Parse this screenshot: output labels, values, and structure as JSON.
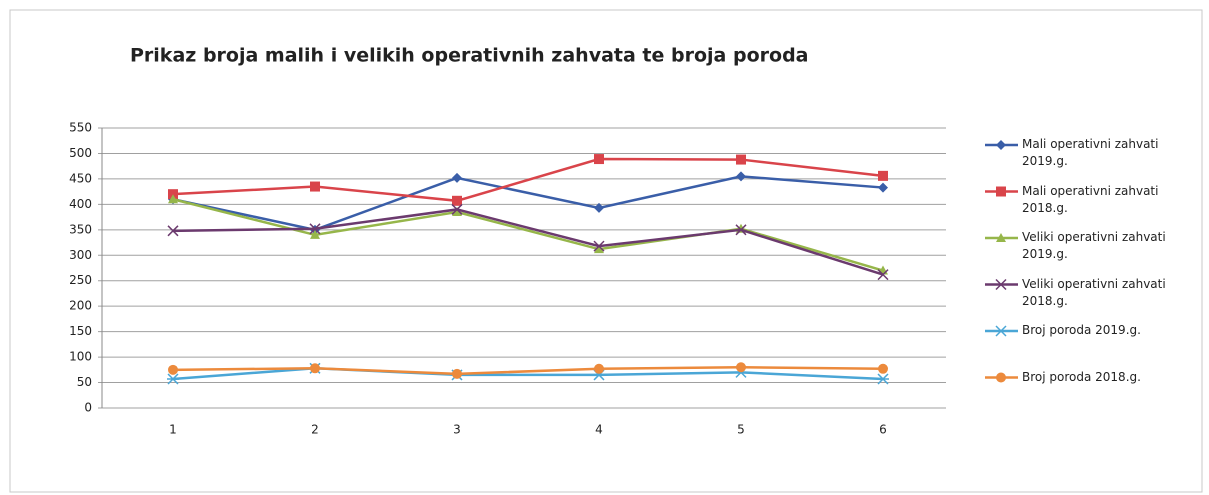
{
  "chart_data": {
    "type": "line",
    "title": "Prikaz broja malih i velikih operativnih zahvata te broja poroda",
    "categories": [
      "1",
      "2",
      "3",
      "4",
      "5",
      "6"
    ],
    "series": [
      {
        "name": "Mali operativni zahvati 2019.g.",
        "color": "#3a5ea8",
        "marker": "diamond",
        "values": [
          410,
          350,
          452,
          393,
          455,
          433
        ]
      },
      {
        "name": "Mali operativni zahvati 2018.g.",
        "color": "#d9444a",
        "marker": "square",
        "values": [
          420,
          435,
          407,
          489,
          488,
          456
        ]
      },
      {
        "name": "Veliki operativni zahvati 2019.g.",
        "color": "#96b64a",
        "marker": "triangle",
        "values": [
          410,
          340,
          385,
          312,
          352,
          270
        ]
      },
      {
        "name": "Veliki operativni zahvati 2018.g.",
        "color": "#6b3a6e",
        "marker": "x",
        "values": [
          348,
          352,
          390,
          318,
          350,
          262
        ]
      },
      {
        "name": "Broj poroda 2019.g.",
        "color": "#4aa6d6",
        "marker": "star",
        "values": [
          57,
          78,
          65,
          65,
          70,
          57
        ]
      },
      {
        "name": "Broj poroda 2018.g.",
        "color": "#ec8a3c",
        "marker": "circle",
        "values": [
          75,
          78,
          67,
          77,
          80,
          77
        ]
      }
    ],
    "ylim": [
      0,
      550
    ],
    "yticks": [
      0,
      50,
      100,
      150,
      200,
      250,
      300,
      350,
      400,
      450,
      500,
      550
    ],
    "grid": true,
    "legend": "right"
  }
}
